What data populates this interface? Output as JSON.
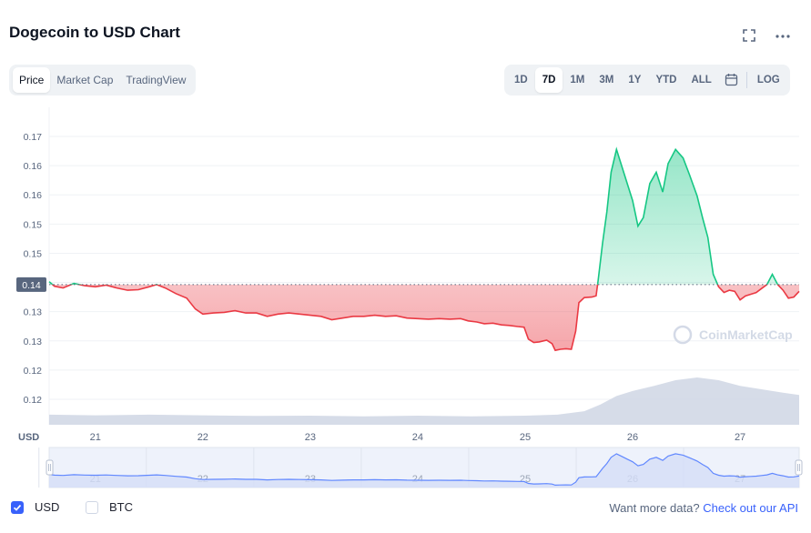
{
  "header": {
    "title": "Dogecoin to USD Chart"
  },
  "icons": {
    "expand": "fullscreen-icon",
    "more": "more-horizontal-icon",
    "calendar": "calendar-icon",
    "watermark": "coinmarketcap-logo-icon"
  },
  "tabs_left": [
    {
      "label": "Price",
      "active": true
    },
    {
      "label": "Market Cap",
      "active": false
    },
    {
      "label": "TradingView",
      "active": false
    }
  ],
  "tabs_right": [
    {
      "label": "1D",
      "active": false
    },
    {
      "label": "7D",
      "active": true
    },
    {
      "label": "1M",
      "active": false
    },
    {
      "label": "3M",
      "active": false
    },
    {
      "label": "1Y",
      "active": false
    },
    {
      "label": "YTD",
      "active": false
    },
    {
      "label": "ALL",
      "active": false
    }
  ],
  "log_label": "LOG",
  "watermark_text": "CoinMarketCap",
  "legend": {
    "usd_label": "USD",
    "btc_label": "BTC",
    "usd_checked": true,
    "btc_checked": false
  },
  "footer": {
    "text": "Want more data?",
    "link": "Check out our API"
  },
  "colors": {
    "up": "#16c784",
    "down": "#ea3943",
    "accent": "#3861fb",
    "volume": "#cfd6e4",
    "grid": "#eff2f5",
    "nav_line": "#6188ff"
  },
  "chart_data": {
    "type": "area",
    "currency_label": "USD",
    "x_tick_labels": [
      "21",
      "22",
      "23",
      "24",
      "25",
      "26",
      "27"
    ],
    "y_tick_labels": [
      "0.17",
      "0.16",
      "0.16",
      "0.15",
      "0.15",
      "0.14",
      "0.13",
      "0.13",
      "0.12",
      "0.12"
    ],
    "ylim": [
      0.1185,
      0.1725
    ],
    "xlim": [
      20.57,
      27.55
    ],
    "baseline": 0.1432,
    "baseline_label": "0.14",
    "series": [
      {
        "values": [
          [
            20.57,
            0.1437
          ],
          [
            20.62,
            0.1429
          ],
          [
            20.7,
            0.1426
          ],
          [
            20.8,
            0.1434
          ],
          [
            20.9,
            0.143
          ],
          [
            21.0,
            0.1428
          ],
          [
            21.1,
            0.1431
          ],
          [
            21.2,
            0.1426
          ],
          [
            21.3,
            0.1422
          ],
          [
            21.4,
            0.1423
          ],
          [
            21.5,
            0.1428
          ],
          [
            21.57,
            0.1432
          ],
          [
            21.65,
            0.1426
          ],
          [
            21.75,
            0.1416
          ],
          [
            21.85,
            0.1408
          ],
          [
            21.93,
            0.1389
          ],
          [
            22.0,
            0.138
          ],
          [
            22.1,
            0.1382
          ],
          [
            22.2,
            0.1383
          ],
          [
            22.3,
            0.1386
          ],
          [
            22.4,
            0.1382
          ],
          [
            22.5,
            0.1382
          ],
          [
            22.6,
            0.1376
          ],
          [
            22.7,
            0.138
          ],
          [
            22.8,
            0.1382
          ],
          [
            22.9,
            0.138
          ],
          [
            23.0,
            0.1378
          ],
          [
            23.1,
            0.1376
          ],
          [
            23.2,
            0.137
          ],
          [
            23.3,
            0.1373
          ],
          [
            23.4,
            0.1376
          ],
          [
            23.5,
            0.1376
          ],
          [
            23.6,
            0.1378
          ],
          [
            23.7,
            0.1376
          ],
          [
            23.8,
            0.1377
          ],
          [
            23.9,
            0.1373
          ],
          [
            24.0,
            0.1372
          ],
          [
            24.1,
            0.1371
          ],
          [
            24.2,
            0.1372
          ],
          [
            24.3,
            0.1371
          ],
          [
            24.4,
            0.1372
          ],
          [
            24.47,
            0.1368
          ],
          [
            24.55,
            0.1366
          ],
          [
            24.62,
            0.1363
          ],
          [
            24.7,
            0.1364
          ],
          [
            24.78,
            0.1361
          ],
          [
            24.85,
            0.136
          ],
          [
            24.93,
            0.1358
          ],
          [
            24.99,
            0.1357
          ],
          [
            25.03,
            0.1336
          ],
          [
            25.08,
            0.133
          ],
          [
            25.13,
            0.1331
          ],
          [
            25.2,
            0.1334
          ],
          [
            25.25,
            0.1328
          ],
          [
            25.28,
            0.1316
          ],
          [
            25.33,
            0.1318
          ],
          [
            25.38,
            0.1319
          ],
          [
            25.43,
            0.1318
          ],
          [
            25.47,
            0.135
          ],
          [
            25.5,
            0.14
          ],
          [
            25.55,
            0.1409
          ],
          [
            25.62,
            0.141
          ],
          [
            25.66,
            0.1412
          ],
          [
            25.68,
            0.144
          ],
          [
            25.72,
            0.1505
          ],
          [
            25.76,
            0.156
          ],
          [
            25.8,
            0.163
          ],
          [
            25.85,
            0.167
          ],
          [
            25.9,
            0.164
          ],
          [
            25.95,
            0.161
          ],
          [
            26.0,
            0.158
          ],
          [
            26.05,
            0.1535
          ],
          [
            26.1,
            0.155
          ],
          [
            26.16,
            0.161
          ],
          [
            26.22,
            0.163
          ],
          [
            26.28,
            0.1595
          ],
          [
            26.33,
            0.1645
          ],
          [
            26.4,
            0.167
          ],
          [
            26.47,
            0.1655
          ],
          [
            26.53,
            0.1625
          ],
          [
            26.6,
            0.1588
          ],
          [
            26.65,
            0.155
          ],
          [
            26.7,
            0.1515
          ],
          [
            26.75,
            0.145
          ],
          [
            26.8,
            0.1428
          ],
          [
            26.85,
            0.1418
          ],
          [
            26.9,
            0.1422
          ],
          [
            26.95,
            0.142
          ],
          [
            27.0,
            0.1405
          ],
          [
            27.05,
            0.1412
          ],
          [
            27.1,
            0.1415
          ],
          [
            27.15,
            0.1418
          ],
          [
            27.2,
            0.1425
          ],
          [
            27.25,
            0.1432
          ],
          [
            27.3,
            0.145
          ],
          [
            27.35,
            0.1432
          ],
          [
            27.4,
            0.1422
          ],
          [
            27.45,
            0.1408
          ],
          [
            27.5,
            0.141
          ],
          [
            27.55,
            0.142
          ]
        ]
      }
    ],
    "volume": [
      [
        20.57,
        0.3
      ],
      [
        21.0,
        0.28
      ],
      [
        21.5,
        0.3
      ],
      [
        22.0,
        0.28
      ],
      [
        22.5,
        0.26
      ],
      [
        23.0,
        0.27
      ],
      [
        23.5,
        0.25
      ],
      [
        24.0,
        0.27
      ],
      [
        24.5,
        0.25
      ],
      [
        25.0,
        0.27
      ],
      [
        25.3,
        0.3
      ],
      [
        25.55,
        0.4
      ],
      [
        25.7,
        0.6
      ],
      [
        25.85,
        0.85
      ],
      [
        26.0,
        1.0
      ],
      [
        26.2,
        1.15
      ],
      [
        26.4,
        1.32
      ],
      [
        26.6,
        1.4
      ],
      [
        26.8,
        1.32
      ],
      [
        27.0,
        1.15
      ],
      [
        27.2,
        1.05
      ],
      [
        27.4,
        0.95
      ],
      [
        27.55,
        0.88
      ]
    ],
    "navigator": {
      "x_tick_labels": [
        "21",
        "22",
        "23",
        "24",
        "25",
        "26",
        "27"
      ]
    }
  }
}
